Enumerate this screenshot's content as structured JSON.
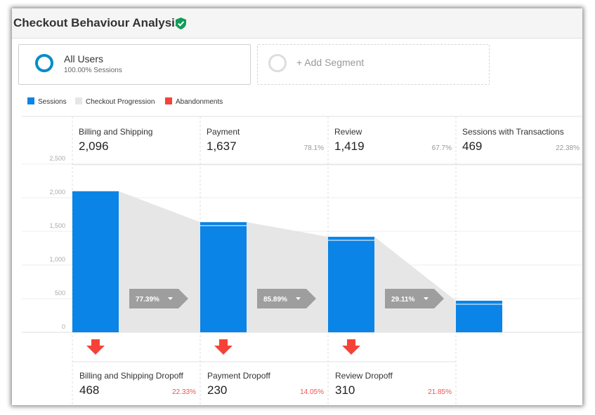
{
  "header": {
    "title": "Checkout Behaviour Analysis"
  },
  "segments": {
    "primary": {
      "name": "All Users",
      "sub": "100.00% Sessions"
    },
    "add_label": "+ Add Segment"
  },
  "legend": [
    {
      "label": "Sessions",
      "color": "#0a84e6"
    },
    {
      "label": "Checkout Progression",
      "color": "#e6e6e6"
    },
    {
      "label": "Abandonments",
      "color": "#f44336"
    }
  ],
  "chart_data": {
    "type": "bar",
    "ylim": [
      0,
      2500
    ],
    "yticks": [
      "0",
      "500",
      "1,000",
      "1,500",
      "2,000",
      "2,500"
    ],
    "ytick_values": [
      0,
      500,
      1000,
      1500,
      2000,
      2500
    ],
    "steps": [
      {
        "name": "Billing and Shipping",
        "value": 2096,
        "value_label": "2,096",
        "pct_label": ""
      },
      {
        "name": "Payment",
        "value": 1637,
        "value_label": "1,637",
        "pct_label": "78.1%"
      },
      {
        "name": "Review",
        "value": 1419,
        "value_label": "1,419",
        "pct_label": "67.7%"
      },
      {
        "name": "Sessions with Transactions",
        "value": 469,
        "value_label": "469",
        "pct_label": "22.38%"
      }
    ],
    "progressions": [
      "77.39%",
      "85.89%",
      "29.11%"
    ],
    "dropoffs": [
      {
        "name": "Billing and Shipping Dropoff",
        "value_label": "468",
        "pct_label": "22.33%"
      },
      {
        "name": "Payment Dropoff",
        "value_label": "230",
        "pct_label": "14.05%"
      },
      {
        "name": "Review Dropoff",
        "value_label": "310",
        "pct_label": "21.85%"
      }
    ],
    "colors": {
      "sessions": "#0a84e6",
      "progression": "#e6e6e6",
      "abandon": "#f44336",
      "pct": "#999999",
      "dropoff_pct": "#ef5350",
      "badge": "#9e9e9e"
    }
  }
}
